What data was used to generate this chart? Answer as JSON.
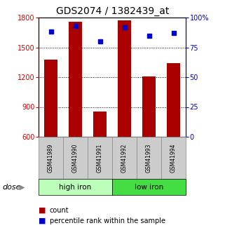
{
  "title": "GDS2074 / 1382439_at",
  "categories": [
    "GSM41989",
    "GSM41990",
    "GSM41991",
    "GSM41992",
    "GSM41993",
    "GSM41994"
  ],
  "bar_values": [
    1380,
    1760,
    855,
    1770,
    1210,
    1340
  ],
  "percentile_values": [
    88,
    93,
    80,
    92,
    85,
    87
  ],
  "ylim_left": [
    600,
    1800
  ],
  "ylim_right": [
    0,
    100
  ],
  "yticks_left": [
    600,
    900,
    1200,
    1500,
    1800
  ],
  "yticks_right": [
    0,
    25,
    50,
    75,
    100
  ],
  "ytick_labels_right": [
    "0",
    "25",
    "50",
    "75",
    "100%"
  ],
  "gridlines_at": [
    900,
    1200,
    1500
  ],
  "bar_color": "#aa0000",
  "dot_color": "#0000cc",
  "group1_label": "high iron",
  "group2_label": "low iron",
  "group1_color": "#bbffbb",
  "group2_color": "#44dd44",
  "group1_n": 3,
  "group2_n": 3,
  "dose_label": "dose",
  "legend_count": "count",
  "legend_pct": "percentile rank within the sample",
  "left_axis_color": "#cc0000",
  "right_axis_color": "#0000cc",
  "title_fontsize": 10,
  "tick_fontsize": 7,
  "label_fontsize": 7,
  "bar_width": 0.55,
  "background_color": "#ffffff",
  "xlim": [
    -0.5,
    5.5
  ],
  "sample_box_color": "#cccccc",
  "sample_box_edge": "#888888"
}
